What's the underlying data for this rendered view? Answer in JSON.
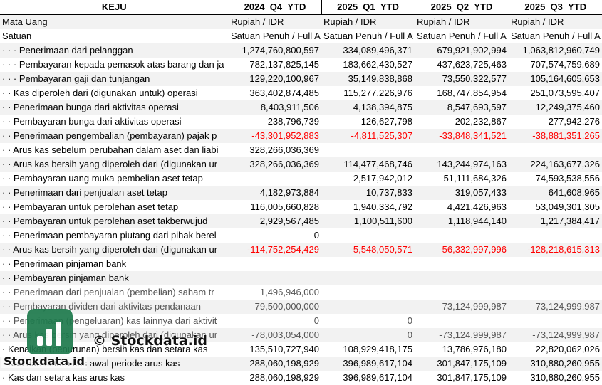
{
  "columns": [
    "KEJU",
    "2024_Q4_YTD",
    "2025_Q1_YTD",
    "2025_Q2_YTD",
    "2025_Q3_YTD"
  ],
  "rows": [
    {
      "label": "Mata Uang",
      "cells": [
        "Rupiah / IDR",
        "Rupiah / IDR",
        "Rupiah / IDR",
        "Rupiah / IDR"
      ],
      "kind": "text"
    },
    {
      "label": "Satuan",
      "cells": [
        "Satuan Penuh / Full A",
        "Satuan Penuh / Full A",
        "Satuan Penuh / Full A",
        "Satuan Penuh / Full A"
      ],
      "kind": "text"
    },
    {
      "label": "· · · Penerimaan dari pelanggan",
      "cells": [
        "1,274,760,800,597",
        "334,089,496,371",
        "679,921,902,994",
        "1,063,812,960,749"
      ]
    },
    {
      "label": "· · · Pembayaran kepada pemasok atas barang dan ja",
      "cells": [
        "782,137,825,145",
        "183,662,430,527",
        "437,623,725,463",
        "707,574,759,689"
      ]
    },
    {
      "label": "· · · Pembayaran gaji dan tunjangan",
      "cells": [
        "129,220,100,967",
        "35,149,838,868",
        "73,550,322,577",
        "105,164,605,653"
      ]
    },
    {
      "label": "· · Kas diperoleh dari (digunakan untuk) operasi",
      "cells": [
        "363,402,874,485",
        "115,277,226,976",
        "168,747,854,954",
        "251,073,595,407"
      ]
    },
    {
      "label": "· · Penerimaan bunga dari aktivitas operasi",
      "cells": [
        "8,403,911,506",
        "4,138,394,875",
        "8,547,693,597",
        "12,249,375,460"
      ]
    },
    {
      "label": "· · Pembayaran bunga dari aktivitas operasi",
      "cells": [
        "238,796,739",
        "126,627,798",
        "202,232,867",
        "277,942,276"
      ]
    },
    {
      "label": "· · Penerimaan pengembalian (pembayaran) pajak p",
      "cells": [
        "-43,301,952,883",
        "-4,811,525,307",
        "-33,848,341,521",
        "-38,881,351,265"
      ],
      "neg": [
        true,
        true,
        true,
        true
      ]
    },
    {
      "label": "· · Arus kas sebelum perubahan dalam aset dan liabi",
      "cells": [
        "328,266,036,369",
        "",
        "",
        ""
      ]
    },
    {
      "label": "· · Arus kas bersih yang diperoleh dari (digunakan ur",
      "cells": [
        "328,266,036,369",
        "114,477,468,746",
        "143,244,974,163",
        "224,163,677,326"
      ]
    },
    {
      "label": "· · Pembayaran uang muka pembelian aset tetap",
      "cells": [
        "",
        "2,517,942,012",
        "51,111,684,326",
        "74,593,538,556"
      ]
    },
    {
      "label": "· · Penerimaan dari penjualan aset tetap",
      "cells": [
        "4,182,973,884",
        "10,737,833",
        "319,057,433",
        "641,608,965"
      ]
    },
    {
      "label": "· · Pembayaran untuk perolehan aset tetap",
      "cells": [
        "116,005,660,828",
        "1,940,334,792",
        "4,421,426,963",
        "53,049,301,305"
      ]
    },
    {
      "label": "· · Pembayaran untuk perolehan aset takberwujud",
      "cells": [
        "2,929,567,485",
        "1,100,511,600",
        "1,118,944,140",
        "1,217,384,417"
      ]
    },
    {
      "label": "· · Penerimaan pembayaran piutang dari pihak berel",
      "cells": [
        "0",
        "",
        "",
        ""
      ]
    },
    {
      "label": "· · Arus kas bersih yang diperoleh dari (digunakan ur",
      "cells": [
        "-114,752,254,429",
        "-5,548,050,571",
        "-56,332,997,996",
        "-128,218,615,313"
      ],
      "neg": [
        true,
        true,
        true,
        true
      ]
    },
    {
      "label": "· · Penerimaan pinjaman bank",
      "cells": [
        "",
        "",
        "",
        ""
      ]
    },
    {
      "label": "· · Pembayaran pinjaman bank",
      "cells": [
        "",
        "",
        "",
        ""
      ]
    },
    {
      "label": "· · Penerimaan dari penjualan (pembelian) saham tr",
      "cells": [
        "1,496,946,000",
        "",
        "",
        ""
      ]
    },
    {
      "label": "· · Pembayaran dividen dari aktivitas pendanaan",
      "cells": [
        "79,500,000,000",
        "",
        "73,124,999,987",
        "73,124,999,987"
      ]
    },
    {
      "label": "· · Penerimaan (pengeluaran) kas lainnya dari aktivit",
      "cells": [
        "0",
        "0",
        "",
        ""
      ]
    },
    {
      "label": "· · Arus kas bersih yang diperoleh dari (digunakan ur",
      "cells": [
        "-78,003,054,000",
        "0",
        "-73,124,999,987",
        "-73,124,999,987"
      ],
      "neg": [
        true,
        false,
        true,
        true
      ]
    },
    {
      "label": "· Kenaikan (penurunan) bersih kas dan setara kas",
      "cells": [
        "135,510,727,940",
        "108,929,418,175",
        "13,786,976,180",
        "22,820,062,026"
      ]
    },
    {
      "label": "· Kas dan setara kas awal periode arus kas",
      "cells": [
        "288,060,198,929",
        "396,989,617,104",
        "301,847,175,109",
        "310,880,260,955"
      ]
    },
    {
      "label": "· Kas dan setara kas arus kas",
      "cells": [
        "288,060,198,929",
        "396,989,617,104",
        "301,847,175,109",
        "310,880,260,955"
      ]
    }
  ],
  "watermark": {
    "copyright": "© Stockdata.id",
    "site": "Stockdata.id",
    "icon": "stockdata-logo-icon"
  }
}
